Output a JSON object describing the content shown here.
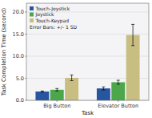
{
  "chart_data": {
    "type": "bar",
    "xlabel": "Task",
    "ylabel": "Task Completion Time (second)",
    "annotation": "Error Bars: +/- 1 SD",
    "categories": [
      "Big Button",
      "Elevator Button"
    ],
    "series": [
      {
        "name": "Touch-Joystick",
        "color": "#2855a0",
        "values": [
          2.0,
          2.7
        ],
        "errors": [
          0.12,
          0.35
        ]
      },
      {
        "name": "Joystick",
        "color": "#4ca64c",
        "values": [
          2.4,
          4.1
        ],
        "errors": [
          0.28,
          0.45
        ]
      },
      {
        "name": "Touch-Keypad",
        "color": "#c8be82",
        "values": [
          5.1,
          14.8
        ],
        "errors": [
          0.65,
          2.4
        ]
      }
    ],
    "ylim": [
      0.0,
      22.0
    ],
    "yticks": [
      {
        "value": 0.0,
        "label": "0.0"
      },
      {
        "value": 5.0,
        "label": "5.0"
      },
      {
        "value": 10.0,
        "label": "10.0"
      },
      {
        "value": 15.0,
        "label": "15.0"
      },
      {
        "value": 20.0,
        "label": "20.0"
      }
    ],
    "grid": true,
    "legend": "upper left"
  }
}
